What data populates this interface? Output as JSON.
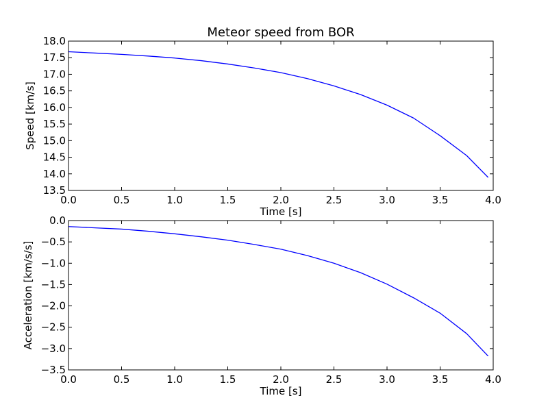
{
  "chart_data": [
    {
      "type": "line",
      "title": "Meteor speed from  BOR",
      "xlabel": "Time [s]",
      "ylabel": "Speed [km/s]",
      "xlim": [
        0.0,
        4.0
      ],
      "ylim": [
        13.5,
        18.0
      ],
      "xticks": [
        "0.0",
        "0.5",
        "1.0",
        "1.5",
        "2.0",
        "2.5",
        "3.0",
        "3.5",
        "4.0"
      ],
      "yticks": [
        "13.5",
        "14.0",
        "14.5",
        "15.0",
        "15.5",
        "16.0",
        "16.5",
        "17.0",
        "17.5",
        "18.0"
      ],
      "grid": false,
      "line_color": "#0000ff",
      "series": [
        {
          "x": [
            0.0,
            0.25,
            0.5,
            0.75,
            1.0,
            1.25,
            1.5,
            1.75,
            2.0,
            2.25,
            2.5,
            2.75,
            3.0,
            3.25,
            3.5,
            3.75,
            3.95
          ],
          "values": [
            17.68,
            17.64,
            17.6,
            17.55,
            17.49,
            17.41,
            17.31,
            17.19,
            17.05,
            16.87,
            16.65,
            16.39,
            16.07,
            15.68,
            15.15,
            14.55,
            13.9
          ]
        }
      ]
    },
    {
      "type": "line",
      "title": "",
      "xlabel": "Time [s]",
      "ylabel": "Acceleration [km/s/s]",
      "xlim": [
        0.0,
        4.0
      ],
      "ylim": [
        -3.5,
        0.0
      ],
      "xticks": [
        "0.0",
        "0.5",
        "1.0",
        "1.5",
        "2.0",
        "2.5",
        "3.0",
        "3.5",
        "4.0"
      ],
      "yticks": [
        "−3.5",
        "−3.0",
        "−2.5",
        "−2.0",
        "−1.5",
        "−1.0",
        "−0.5",
        "0.0"
      ],
      "grid": false,
      "line_color": "#0000ff",
      "series": [
        {
          "x": [
            0.0,
            0.25,
            0.5,
            0.75,
            1.0,
            1.25,
            1.5,
            1.75,
            2.0,
            2.25,
            2.5,
            2.75,
            3.0,
            3.25,
            3.5,
            3.75,
            3.95
          ],
          "values": [
            -0.14,
            -0.17,
            -0.2,
            -0.25,
            -0.31,
            -0.38,
            -0.46,
            -0.56,
            -0.67,
            -0.82,
            -1.0,
            -1.22,
            -1.49,
            -1.81,
            -2.17,
            -2.65,
            -3.17
          ]
        }
      ]
    }
  ]
}
